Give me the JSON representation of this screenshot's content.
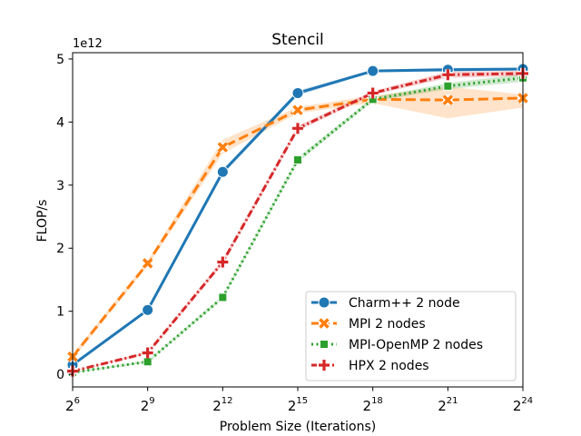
{
  "chart_data": {
    "type": "line",
    "title": "Stencil",
    "xlabel": "Problem Size (Iterations)",
    "ylabel": "FLOP/s",
    "y_offset_text": "1e12",
    "x_scale": "log2",
    "x": [
      64,
      512,
      4096,
      32768,
      262144,
      2097152,
      16777216
    ],
    "x_tick_bases": [
      "2",
      "2",
      "2",
      "2",
      "2",
      "2",
      "2"
    ],
    "x_tick_exps": [
      "6",
      "9",
      "12",
      "15",
      "18",
      "21",
      "24"
    ],
    "y_ticks": [
      "0",
      "1",
      "2",
      "3",
      "4",
      "5"
    ],
    "ylim": [
      -0.2,
      5.1
    ],
    "grid": false,
    "legend_position": "lower-right",
    "series": [
      {
        "name": "Charm++ 2 node",
        "color": "#1f77b4",
        "marker": "circle",
        "dash": "solid",
        "values": [
          0.15,
          1.02,
          3.21,
          4.46,
          4.81,
          4.83,
          4.84
        ],
        "band_low": [
          0.13,
          1.0,
          3.17,
          4.42,
          4.79,
          4.8,
          4.82
        ],
        "band_high": [
          0.17,
          1.04,
          3.25,
          4.5,
          4.83,
          4.86,
          4.86
        ]
      },
      {
        "name": "MPI 2 nodes",
        "color": "#ff7f0e",
        "marker": "x",
        "dash": "dashed",
        "values": [
          0.28,
          1.76,
          3.6,
          4.19,
          4.36,
          4.35,
          4.38
        ],
        "band_low": [
          0.24,
          1.72,
          3.5,
          4.14,
          4.3,
          4.06,
          4.23
        ],
        "band_high": [
          0.32,
          1.8,
          3.72,
          4.24,
          4.42,
          4.56,
          4.44
        ]
      },
      {
        "name": "MPI-OpenMP 2 nodes",
        "color": "#2ca02c",
        "marker": "square",
        "dash": "dotted",
        "values": [
          0.03,
          0.2,
          1.22,
          3.4,
          4.36,
          4.57,
          4.7
        ],
        "band_low": [
          0.02,
          0.18,
          1.19,
          3.36,
          4.33,
          4.52,
          4.64
        ],
        "band_high": [
          0.04,
          0.22,
          1.25,
          3.44,
          4.39,
          4.62,
          4.76
        ]
      },
      {
        "name": "HPX 2 nodes",
        "color": "#d62728",
        "marker": "plus",
        "dash": "dashdot",
        "values": [
          0.05,
          0.34,
          1.78,
          3.9,
          4.46,
          4.75,
          4.77
        ],
        "band_low": [
          0.04,
          0.32,
          1.74,
          3.86,
          4.43,
          4.7,
          4.73
        ],
        "band_high": [
          0.06,
          0.36,
          1.82,
          3.94,
          4.49,
          4.8,
          4.81
        ]
      }
    ]
  }
}
